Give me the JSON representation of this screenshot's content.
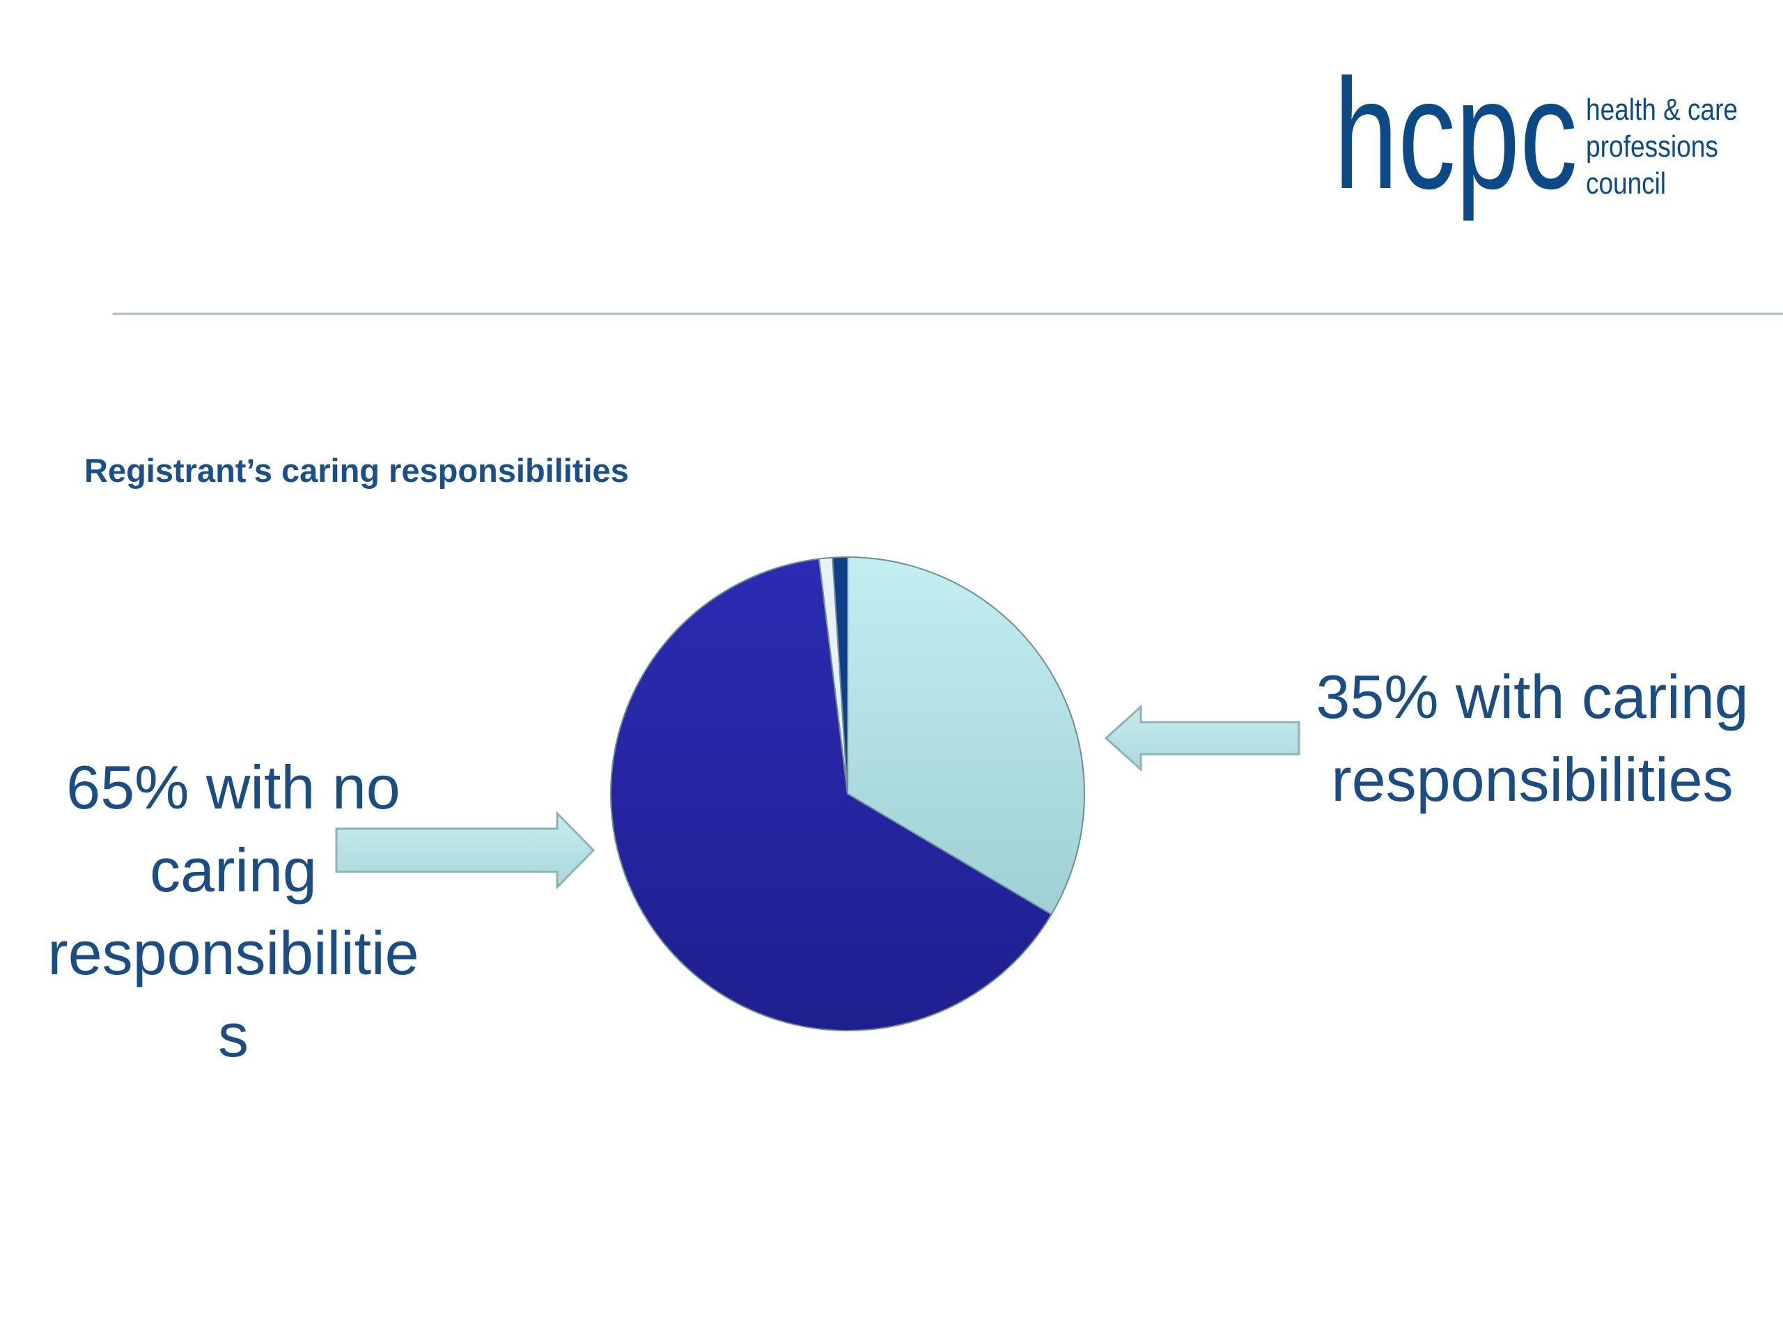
{
  "logo": {
    "wordmark": "hcpc",
    "tagline": [
      "health & care",
      "professions",
      "council"
    ],
    "color": "#0c4a87"
  },
  "slide": {
    "title": "Registrant’s caring responsibilities"
  },
  "labels": {
    "left": [
      "65% with no",
      "caring",
      "responsibilitie",
      "s"
    ],
    "right": [
      "35% with caring",
      "responsibilities"
    ]
  },
  "chart_data": {
    "type": "pie",
    "title": "",
    "slices": [
      {
        "value": 33.0,
        "color": "#b5e3e8"
      },
      {
        "value": 63.6,
        "color": "#2626a8"
      },
      {
        "value": 0.9,
        "color": "#e9f0f6"
      },
      {
        "value": 1.0,
        "color": "#0d3f8a"
      }
    ],
    "annotations": [
      {
        "text": "65% with no caring responsibilities",
        "points_to": "dark blue slice"
      },
      {
        "text": "35% with caring responsibilities",
        "points_to": "light blue slice"
      }
    ]
  },
  "colors": {
    "title": "#1b4f8c",
    "label_text": "#1a4c86",
    "arrow_fill": "#b9e1e4",
    "arrow_stroke": "#8fb2b5",
    "rule": "#a7bcd0"
  }
}
